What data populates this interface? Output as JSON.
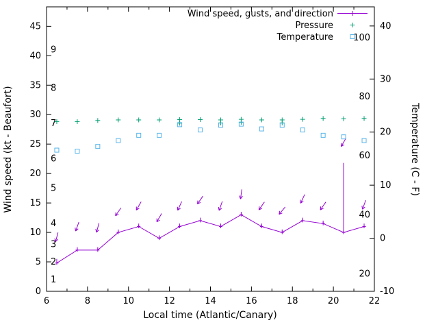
{
  "chart_data": {
    "type": "line",
    "title": "",
    "xlabel": "Local time (Atlantic/Canary)",
    "ylabel_left": "Wind speed (kt - Beaufort)",
    "ylabel_right": "Temperature (C - F)",
    "grid": false,
    "legend_position": "top-right-inside",
    "x_range": [
      6,
      22
    ],
    "x_major_ticks": [
      6,
      8,
      10,
      12,
      14,
      16,
      18,
      20,
      22
    ],
    "x_minor_ticks": [
      7,
      9,
      11,
      13,
      15,
      17,
      19,
      21
    ],
    "y_left_range": [
      0,
      48.3
    ],
    "y_left_ticks": [
      0,
      5,
      10,
      15,
      20,
      25,
      30,
      35,
      40,
      45
    ],
    "y_right_range_c": [
      -10,
      43.6
    ],
    "y_right_ticks": [
      -10,
      0,
      10,
      20,
      30,
      40
    ],
    "beaufort_labels": [
      {
        "label": "1",
        "kt": 2
      },
      {
        "label": "2",
        "kt": 5
      },
      {
        "label": "3",
        "kt": 8
      },
      {
        "label": "4",
        "kt": 11.5
      },
      {
        "label": "5",
        "kt": 17.5
      },
      {
        "label": "6",
        "kt": 22.5
      },
      {
        "label": "7",
        "kt": 28.5
      },
      {
        "label": "8",
        "kt": 34.5
      },
      {
        "label": "9",
        "kt": 41
      }
    ],
    "fahrenheit_labels": [
      {
        "label": "20",
        "celsius": -6.7
      },
      {
        "label": "40",
        "celsius": 4.4
      },
      {
        "label": "60",
        "celsius": 15.6
      },
      {
        "label": "80",
        "celsius": 26.7
      },
      {
        "label": "100",
        "celsius": 37.8
      }
    ],
    "legend": [
      {
        "label": "Wind speed, gusts, and direction",
        "marker": "line-plus",
        "color": "#9400d3"
      },
      {
        "label": "Pressure",
        "marker": "plus",
        "color": "#009e73"
      },
      {
        "label": "Temperature",
        "marker": "square",
        "color": "#56b4e9"
      }
    ],
    "series": {
      "wind": {
        "label": "Wind speed, gusts, and direction",
        "color": "#9400d3",
        "x": [
          6.5,
          7.5,
          8.5,
          9.5,
          10.5,
          11.5,
          12.5,
          13.5,
          14.5,
          15.5,
          16.5,
          17.5,
          18.5,
          19.5,
          20.5,
          21.5
        ],
        "speed_kt": [
          4.8,
          7,
          7,
          10,
          11,
          9,
          11,
          12,
          11,
          13,
          11,
          10,
          12,
          11.5,
          10,
          11
        ],
        "gust_kt": [
          5.5,
          7.5,
          7.5,
          10.5,
          11.5,
          9.5,
          11.5,
          12.5,
          11.5,
          13.5,
          11.5,
          10.5,
          12.5,
          12,
          21.8,
          11.5
        ],
        "arrow_y_kt": [
          9.2,
          11,
          10.8,
          13.5,
          14.5,
          12.5,
          14.5,
          15.5,
          14.5,
          16.5,
          14.5,
          13.7,
          15.7,
          14.5,
          25.3,
          14.7
        ],
        "arrow_angle_deg": [
          255,
          250,
          255,
          235,
          240,
          240,
          245,
          235,
          250,
          262,
          235,
          230,
          245,
          235,
          240,
          250
        ]
      },
      "pressure": {
        "label": "Pressure",
        "color": "#009e73",
        "x": [
          6.5,
          7.5,
          8.5,
          9.5,
          10.5,
          11.5,
          12.5,
          12.5,
          13.5,
          14.5,
          14.5,
          15.5,
          15.5,
          16.5,
          17.5,
          17.5,
          18.5,
          19.5,
          20.5,
          21.5
        ],
        "y_left_axis_kt": [
          28.8,
          28.8,
          29.0,
          29.1,
          29.1,
          29.1,
          28.55,
          29.15,
          29.15,
          28.6,
          29.1,
          28.7,
          29.2,
          29.1,
          28.6,
          29.1,
          29.2,
          29.35,
          29.3,
          29.35
        ]
      },
      "temperature": {
        "label": "Temperature",
        "color": "#56b4e9",
        "x": [
          6.5,
          7.5,
          8.5,
          9.5,
          10.5,
          11.5,
          12.5,
          13.5,
          14.5,
          15.5,
          16.5,
          17.5,
          18.5,
          19.5,
          20.5,
          21.5
        ],
        "celsius": [
          16.6,
          16.4,
          17.3,
          18.4,
          19.4,
          19.4,
          21.4,
          20.4,
          21.3,
          21.5,
          20.6,
          21.3,
          20.4,
          19.4,
          19.1,
          18.4
        ]
      }
    }
  }
}
